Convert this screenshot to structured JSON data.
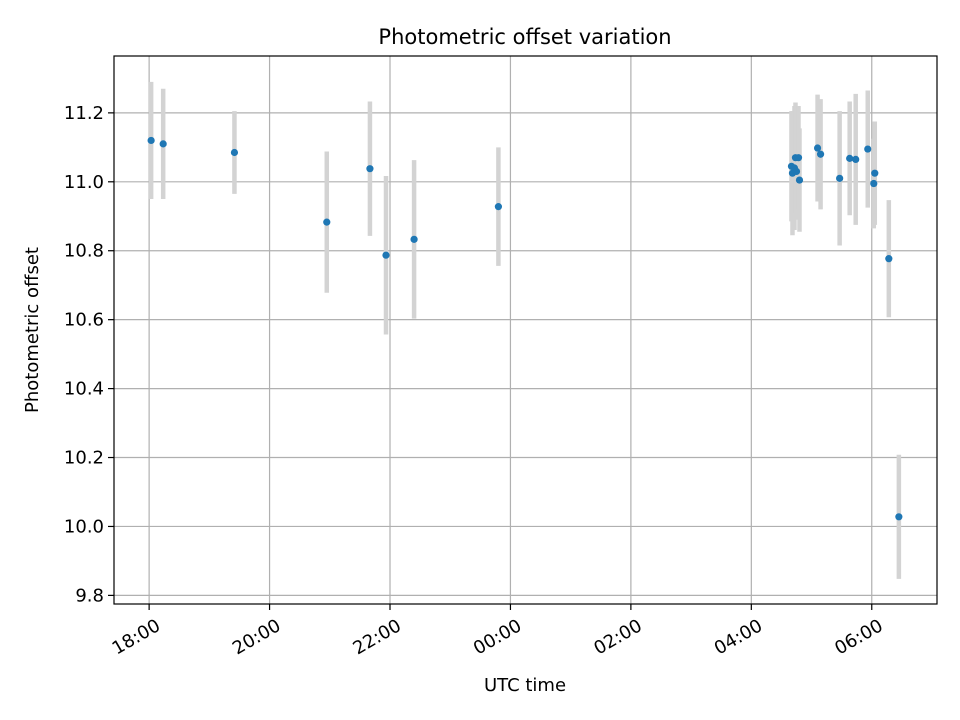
{
  "chart_data": {
    "type": "scatter",
    "title": "Photometric offset variation",
    "xlabel": "UTC time",
    "ylabel": "Photometric offset",
    "x_ticks": [
      "18:00",
      "20:00",
      "22:00",
      "00:00",
      "02:00",
      "04:00",
      "06:00"
    ],
    "y_ticks": [
      "9.8",
      "10.0",
      "10.2",
      "10.4",
      "10.6",
      "10.8",
      "11.0",
      "11.2"
    ],
    "xlim": [
      "17:25",
      "07:05"
    ],
    "ylim": [
      9.775,
      11.365
    ],
    "grid": true,
    "legend": "none",
    "point_color": "#1f77b4",
    "errorbar_color": "#d3d3d3",
    "series": [
      {
        "points": [
          {
            "x": "18:02",
            "y": 11.12,
            "err": 0.17
          },
          {
            "x": "18:14",
            "y": 11.11,
            "err": 0.16
          },
          {
            "x": "19:25",
            "y": 11.085,
            "err": 0.12
          },
          {
            "x": "20:57",
            "y": 10.883,
            "err": 0.205
          },
          {
            "x": "21:40",
            "y": 11.038,
            "err": 0.195
          },
          {
            "x": "21:56",
            "y": 10.787,
            "err": 0.23
          },
          {
            "x": "22:24",
            "y": 10.833,
            "err": 0.23
          },
          {
            "x": "23:48",
            "y": 10.928,
            "err": 0.172
          },
          {
            "x": "04:40",
            "y": 11.045,
            "err": 0.16
          },
          {
            "x": "04:41",
            "y": 11.025,
            "err": 0.18
          },
          {
            "x": "04:43",
            "y": 11.04,
            "err": 0.18
          },
          {
            "x": "04:44",
            "y": 11.07,
            "err": 0.16
          },
          {
            "x": "04:45",
            "y": 11.03,
            "err": 0.14
          },
          {
            "x": "04:47",
            "y": 11.07,
            "err": 0.15
          },
          {
            "x": "04:48",
            "y": 11.005,
            "err": 0.15
          },
          {
            "x": "05:06",
            "y": 11.098,
            "err": 0.155
          },
          {
            "x": "05:09",
            "y": 11.08,
            "err": 0.16
          },
          {
            "x": "05:28",
            "y": 11.01,
            "err": 0.195
          },
          {
            "x": "05:38",
            "y": 11.068,
            "err": 0.165
          },
          {
            "x": "05:44",
            "y": 11.065,
            "err": 0.19
          },
          {
            "x": "05:56",
            "y": 11.095,
            "err": 0.17
          },
          {
            "x": "06:02",
            "y": 10.995,
            "err": 0.13
          },
          {
            "x": "06:03",
            "y": 11.025,
            "err": 0.15
          },
          {
            "x": "06:17",
            "y": 10.777,
            "err": 0.17
          },
          {
            "x": "06:27",
            "y": 10.028,
            "err": 0.18
          }
        ]
      }
    ]
  }
}
